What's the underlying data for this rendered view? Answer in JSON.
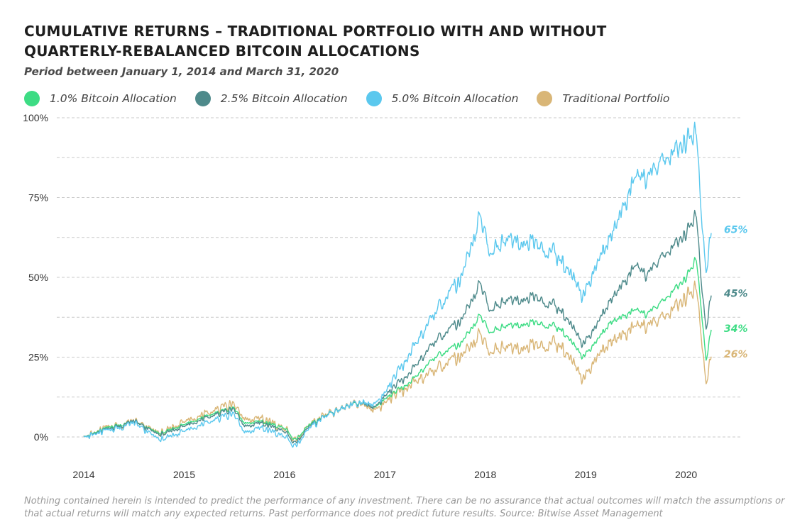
{
  "title_line1": "CUMULATIVE RETURNS – TRADITIONAL PORTFOLIO WITH AND WITHOUT",
  "title_line2": "QUARTERLY-REBALANCED BITCOIN ALLOCATIONS",
  "subtitle": "Period between January 1, 2014 and March 31, 2020",
  "footer": "Nothing contained herein is intended to predict the performance of any investment. There can be no assurance that actual outcomes will match the assumptions or that actual returns will match any expected returns. Past performance does not predict future results. Source: Bitwise Asset Management",
  "chart_data": {
    "type": "line",
    "title": "CUMULATIVE RETURNS – TRADITIONAL PORTFOLIO WITH AND WITHOUT QUARTERLY-REBALANCED BITCOIN ALLOCATIONS",
    "subtitle": "Period between January 1, 2014 and March 31, 2020",
    "xlabel": "",
    "ylabel": "",
    "xlim": [
      2014.0,
      2020.25
    ],
    "ylim": [
      0,
      100
    ],
    "x_ticks": [
      "2014",
      "2015",
      "2016",
      "2017",
      "2018",
      "2019",
      "2020"
    ],
    "y_ticks": [
      "0%",
      "25%",
      "50%",
      "75%",
      "100%"
    ],
    "grid": "horizontal dashed",
    "legend_position": "top",
    "x": [
      2014.0,
      2014.25,
      2014.5,
      2014.75,
      2015.0,
      2015.25,
      2015.5,
      2015.6,
      2015.75,
      2016.0,
      2016.1,
      2016.25,
      2016.5,
      2016.75,
      2016.9,
      2017.0,
      2017.25,
      2017.5,
      2017.75,
      2017.95,
      2018.05,
      2018.25,
      2018.5,
      2018.75,
      2018.97,
      2019.1,
      2019.25,
      2019.5,
      2019.6,
      2019.75,
      2020.0,
      2020.1,
      2020.15,
      2020.2,
      2020.25
    ],
    "series": [
      {
        "name": "1.0% Bitcoin Allocation",
        "color": "#3ddc84",
        "end_label": "34%",
        "values": [
          0,
          3,
          5,
          1,
          4,
          7,
          9,
          4,
          5,
          3,
          -1,
          4,
          8,
          11,
          9,
          12,
          17,
          25,
          29,
          38,
          33,
          35,
          36,
          34,
          25,
          30,
          36,
          40,
          38,
          42,
          50,
          56,
          41,
          24,
          34
        ]
      },
      {
        "name": "2.5% Bitcoin Allocation",
        "color": "#4e8a8b",
        "end_label": "45%",
        "values": [
          0,
          2.5,
          5,
          0.5,
          3.5,
          6.5,
          8.5,
          3,
          4.5,
          2,
          -2,
          3.5,
          8,
          11,
          9,
          13,
          20,
          30,
          36,
          48,
          40,
          43,
          44,
          40,
          29,
          35,
          43,
          54,
          50,
          56,
          64,
          70,
          50,
          34,
          45
        ]
      },
      {
        "name": "5.0% Bitcoin Allocation",
        "color": "#5bc8ee",
        "end_label": "65%",
        "values": [
          0,
          2,
          4.5,
          -1,
          2,
          5,
          7,
          1,
          3,
          0.5,
          -3,
          3,
          8,
          11,
          10,
          14,
          26,
          39,
          49,
          69,
          58,
          62,
          61,
          56,
          44,
          54,
          63,
          82,
          80,
          86,
          93,
          96,
          72,
          52,
          65
        ]
      },
      {
        "name": "Traditional Portfolio",
        "color": "#d9b677",
        "end_label": "26%",
        "values": [
          0,
          3,
          5,
          1,
          5,
          8,
          10,
          5,
          6,
          3,
          -1,
          4,
          8,
          11,
          8,
          11,
          16,
          21,
          25,
          32,
          27,
          28,
          29,
          29,
          18,
          25,
          30,
          35,
          34,
          37,
          44,
          47,
          33,
          17,
          26
        ]
      }
    ]
  }
}
